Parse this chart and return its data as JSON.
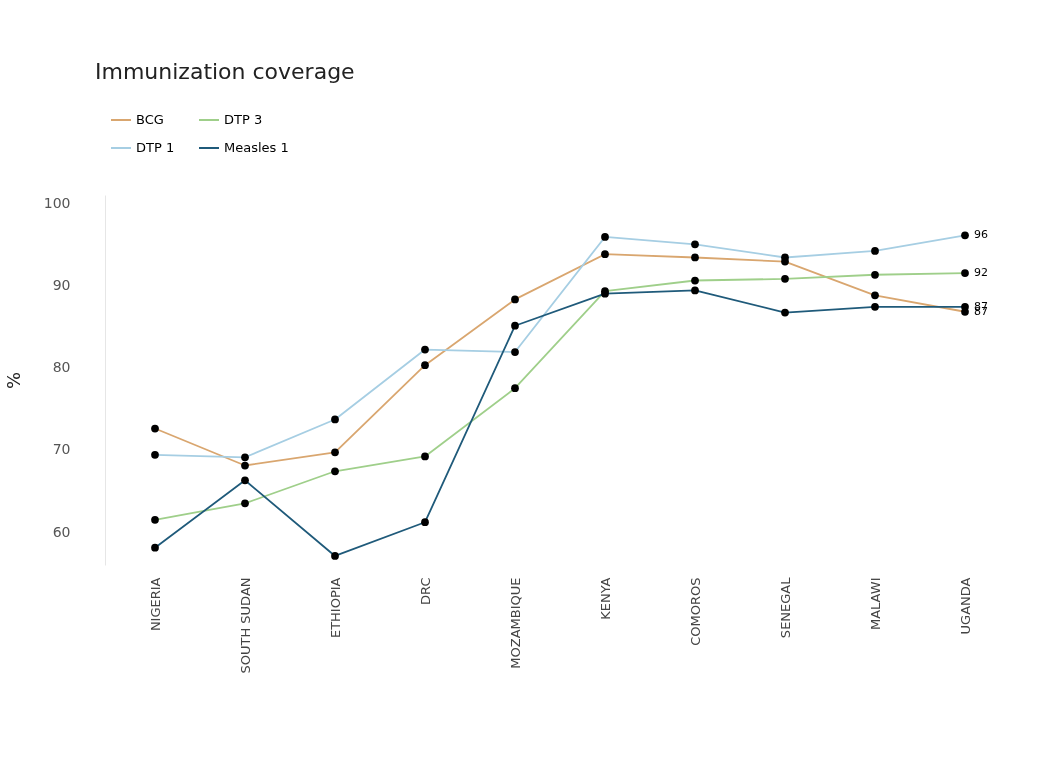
{
  "chart_data": {
    "type": "line",
    "title": "Immunization coverage",
    "ylabel": "%",
    "categories": [
      "NIGERIA",
      "SOUTH SUDAN",
      "ETHIOPIA",
      "DRC",
      "MOZAMBIQUE",
      "KENYA",
      "COMOROS",
      "SENEGAL",
      "MALAWI",
      "UGANDA"
    ],
    "series": [
      {
        "name": "BCG",
        "color": "#d9a66f",
        "values": [
          72.6,
          68.1,
          69.7,
          80.3,
          88.3,
          93.8,
          93.4,
          92.9,
          88.8,
          86.8
        ],
        "value_labels": [
          null,
          null,
          null,
          null,
          null,
          null,
          null,
          null,
          null,
          "87"
        ]
      },
      {
        "name": "DTP 3",
        "color": "#9fcf8a",
        "values": [
          61.5,
          63.5,
          67.4,
          69.2,
          77.5,
          89.3,
          90.6,
          90.8,
          91.3,
          91.5
        ],
        "value_labels": [
          null,
          null,
          null,
          null,
          null,
          null,
          null,
          null,
          null,
          "92"
        ]
      },
      {
        "name": "DTP 1",
        "color": "#a6cee3",
        "values": [
          69.4,
          69.1,
          73.7,
          82.2,
          81.9,
          95.9,
          95.0,
          93.4,
          94.2,
          96.1
        ],
        "value_labels": [
          null,
          null,
          null,
          null,
          null,
          null,
          null,
          null,
          null,
          "96"
        ]
      },
      {
        "name": "Measles 1",
        "color": "#1f5a7a",
        "values": [
          58.1,
          66.3,
          57.1,
          61.2,
          85.1,
          89.0,
          89.4,
          86.7,
          87.4,
          87.4
        ],
        "value_labels": [
          null,
          null,
          null,
          null,
          null,
          null,
          null,
          null,
          null,
          "87"
        ]
      }
    ],
    "ylim": [
      56,
      101
    ],
    "yticks": [
      60,
      70,
      80,
      90,
      100
    ],
    "grid": false,
    "legend": "top",
    "marker": "circle",
    "line_style": "solid"
  }
}
